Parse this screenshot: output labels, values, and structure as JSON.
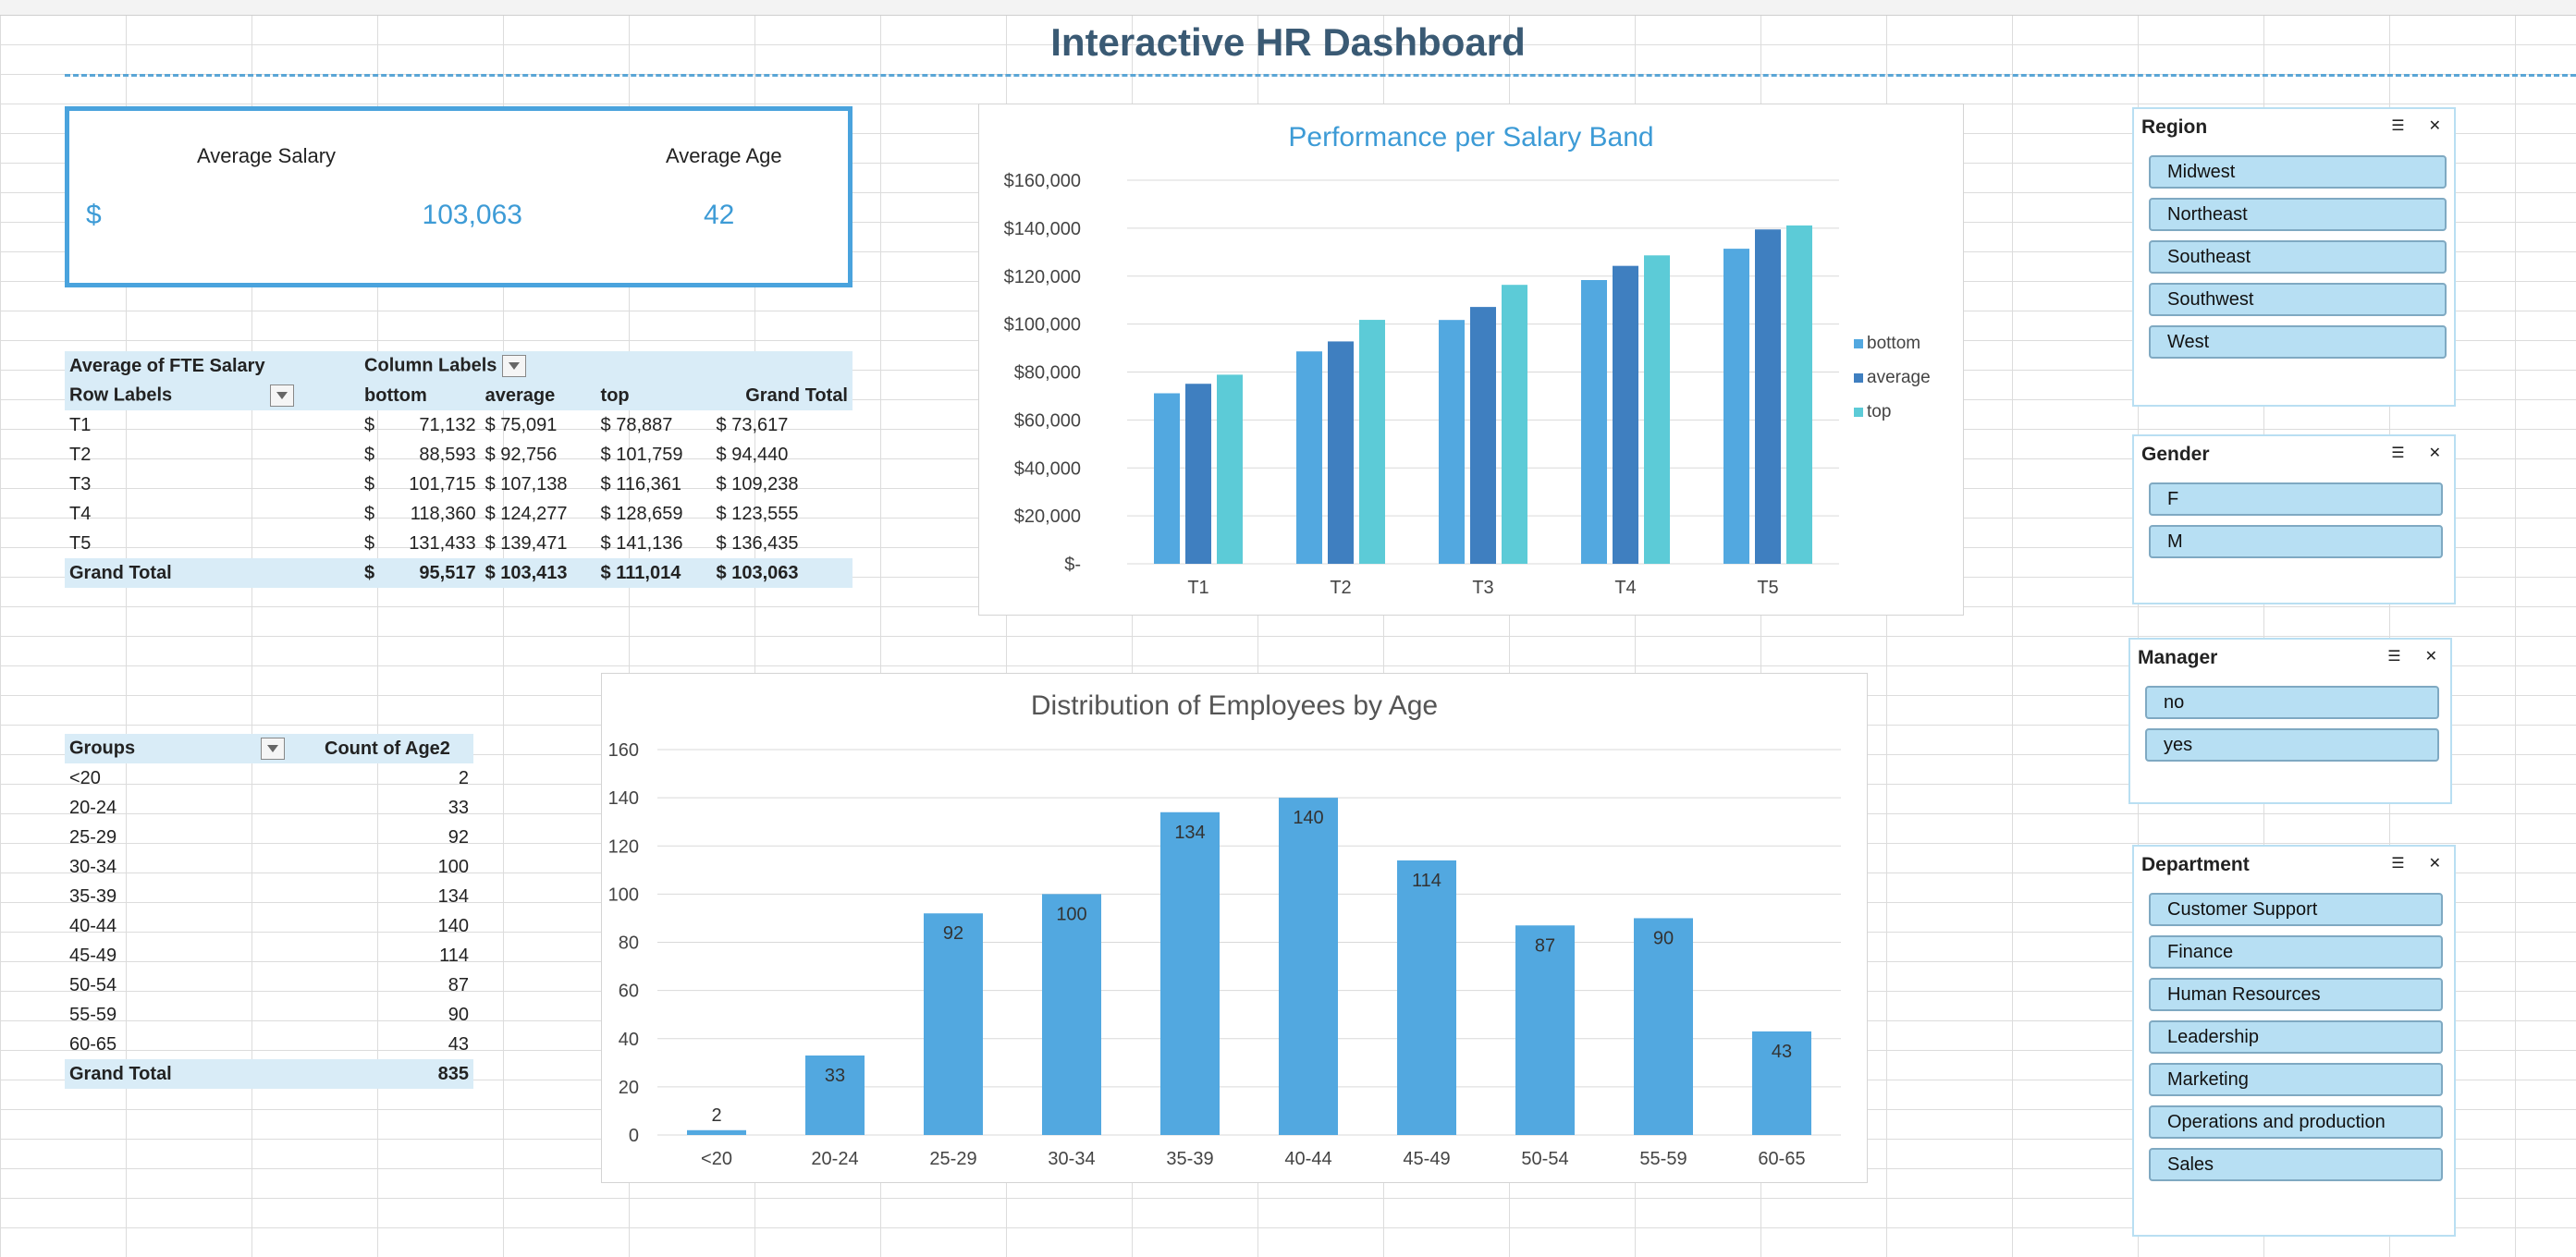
{
  "title": "Interactive HR Dashboard",
  "kpi": {
    "salary_label": "Average Salary",
    "salary_currency": "$",
    "salary_value": "103,063",
    "age_label": "Average Age",
    "age_value": "42"
  },
  "salary_pivot": {
    "corner": "Average of FTE Salary",
    "col_labels": "Column Labels",
    "row_labels": "Row Labels",
    "headers": [
      "bottom",
      "average",
      "top",
      "Grand Total"
    ],
    "rows": [
      {
        "label": "T1",
        "cur": "$",
        "bottom": "71,132",
        "average": "$  75,091",
        "top": "$   78,887",
        "total": "$   73,617"
      },
      {
        "label": "T2",
        "cur": "$",
        "bottom": "88,593",
        "average": "$  92,756",
        "top": "$ 101,759",
        "total": "$   94,440"
      },
      {
        "label": "T3",
        "cur": "$",
        "bottom": "101,715",
        "average": "$ 107,138",
        "top": "$ 116,361",
        "total": "$ 109,238"
      },
      {
        "label": "T4",
        "cur": "$",
        "bottom": "118,360",
        "average": "$ 124,277",
        "top": "$ 128,659",
        "total": "$ 123,555"
      },
      {
        "label": "T5",
        "cur": "$",
        "bottom": "131,433",
        "average": "$ 139,471",
        "top": "$ 141,136",
        "total": "$ 136,435"
      }
    ],
    "grand": {
      "label": "Grand Total",
      "cur": "$",
      "bottom": "95,517",
      "average": "$ 103,413",
      "top": "$  111,014",
      "total": "$ 103,063"
    }
  },
  "age_pivot": {
    "h1": "Groups",
    "h2": "Count of Age2",
    "rows": [
      {
        "label": "<20",
        "count": "2"
      },
      {
        "label": "20-24",
        "count": "33"
      },
      {
        "label": "25-29",
        "count": "92"
      },
      {
        "label": "30-34",
        "count": "100"
      },
      {
        "label": "35-39",
        "count": "134"
      },
      {
        "label": "40-44",
        "count": "140"
      },
      {
        "label": "45-49",
        "count": "114"
      },
      {
        "label": "50-54",
        "count": "87"
      },
      {
        "label": "55-59",
        "count": "90"
      },
      {
        "label": "60-65",
        "count": "43"
      }
    ],
    "grand": {
      "label": "Grand Total",
      "count": "835"
    }
  },
  "chart_data": [
    {
      "type": "bar",
      "title": "Performance per Salary Band",
      "categories": [
        "T1",
        "T2",
        "T3",
        "T4",
        "T5"
      ],
      "series": [
        {
          "name": "bottom",
          "values": [
            71132,
            88593,
            101715,
            118360,
            131433
          ]
        },
        {
          "name": "average",
          "values": [
            75091,
            92756,
            107138,
            124277,
            139471
          ]
        },
        {
          "name": "top",
          "values": [
            78887,
            101759,
            116361,
            128659,
            141136
          ]
        }
      ],
      "yticks": [
        "$-",
        "$20,000",
        "$40,000",
        "$60,000",
        "$80,000",
        "$100,000",
        "$120,000",
        "$140,000",
        "$160,000"
      ],
      "ylim": [
        0,
        160000
      ],
      "legend": "right",
      "colors": [
        "#52a8e0",
        "#3f7fc0",
        "#5ccbd7"
      ]
    },
    {
      "type": "bar",
      "title": "Distribution of Employees by Age",
      "categories": [
        "<20",
        "20-24",
        "25-29",
        "30-34",
        "35-39",
        "40-44",
        "45-49",
        "50-54",
        "55-59",
        "60-65"
      ],
      "values": [
        2,
        33,
        92,
        100,
        134,
        140,
        114,
        87,
        90,
        43
      ],
      "yticks": [
        "0",
        "20",
        "40",
        "60",
        "80",
        "100",
        "120",
        "140",
        "160"
      ],
      "ylim": [
        0,
        160
      ],
      "color": "#52a8e0"
    }
  ],
  "slicers": [
    {
      "title": "Region",
      "items": [
        "Midwest",
        "Northeast",
        "Southeast",
        "Southwest",
        "West"
      ]
    },
    {
      "title": "Gender",
      "items": [
        "F",
        "M"
      ]
    },
    {
      "title": "Manager",
      "items": [
        "no",
        "yes"
      ]
    },
    {
      "title": "Department",
      "items": [
        "Customer Support",
        "Finance",
        "Human Resources",
        "Leadership",
        "Marketing",
        "Operations and production",
        "Sales"
      ]
    }
  ]
}
